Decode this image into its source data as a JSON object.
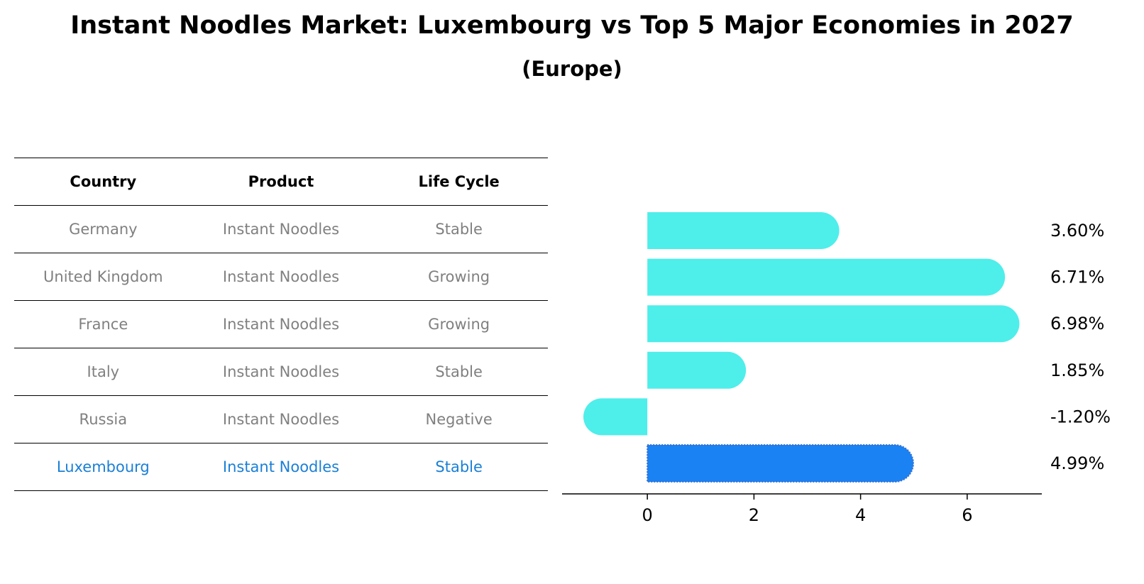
{
  "header": {
    "title": "Instant Noodles Market: Luxembourg vs Top 5 Major Economies in 2027",
    "subtitle": "(Europe)"
  },
  "table": {
    "columns": [
      "Country",
      "Product",
      "Life Cycle"
    ],
    "rows": [
      {
        "country": "Germany",
        "product": "Instant Noodles",
        "life_cycle": "Stable"
      },
      {
        "country": "United Kingdom",
        "product": "Instant Noodles",
        "life_cycle": "Growing"
      },
      {
        "country": "France",
        "product": "Instant Noodles",
        "life_cycle": "Growing"
      },
      {
        "country": "Italy",
        "product": "Instant Noodles",
        "life_cycle": "Stable"
      },
      {
        "country": "Russia",
        "product": "Instant Noodles",
        "life_cycle": "Negative"
      },
      {
        "country": "Luxembourg",
        "product": "Instant Noodles",
        "life_cycle": "Stable"
      }
    ],
    "highlight_color": "#1a7fd6",
    "text_color": "#808080"
  },
  "chart_data": {
    "type": "bar",
    "orientation": "horizontal",
    "categories": [
      "Germany",
      "United Kingdom",
      "France",
      "Italy",
      "Russia",
      "Luxembourg"
    ],
    "values": [
      3.6,
      6.71,
      6.98,
      1.85,
      -1.2,
      4.99
    ],
    "value_labels": [
      "3.60%",
      "6.71%",
      "6.98%",
      "1.85%",
      "-1.20%",
      "4.99%"
    ],
    "highlight_index": 5,
    "bar_color": "#4eeeea",
    "highlight_color": "#1a82f2",
    "xlim": [
      -1.6,
      7.4
    ],
    "xticks": [
      0,
      2,
      4,
      6
    ],
    "xtick_labels": [
      "0",
      "2",
      "4",
      "6"
    ],
    "grid": false
  }
}
